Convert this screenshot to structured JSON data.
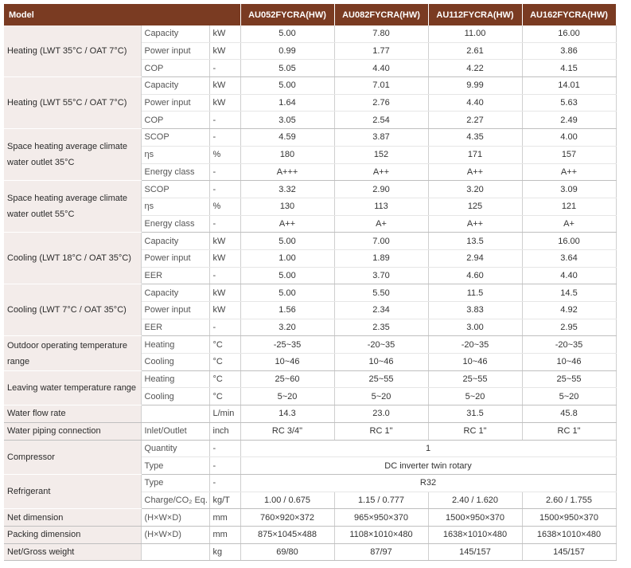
{
  "header": {
    "model_label": "Model",
    "models": [
      "AU052FYCRA(HW)",
      "AU082FYCRA(HW)",
      "AU112FYCRA(HW)",
      "AU162FYCRA(HW)"
    ]
  },
  "groups": [
    {
      "label": "Heating (LWT 35°C / OAT 7°C)",
      "rows": [
        {
          "item": "Capacity",
          "unit": "kW",
          "values": [
            "5.00",
            "7.80",
            "11.00",
            "16.00"
          ]
        },
        {
          "item": "Power input",
          "unit": "kW",
          "values": [
            "0.99",
            "1.77",
            "2.61",
            "3.86"
          ]
        },
        {
          "item": "COP",
          "unit": "-",
          "values": [
            "5.05",
            "4.40",
            "4.22",
            "4.15"
          ]
        }
      ]
    },
    {
      "label": "Heating (LWT 55°C / OAT 7°C)",
      "rows": [
        {
          "item": "Capacity",
          "unit": "kW",
          "values": [
            "5.00",
            "7.01",
            "9.99",
            "14.01"
          ]
        },
        {
          "item": "Power input",
          "unit": "kW",
          "values": [
            "1.64",
            "2.76",
            "4.40",
            "5.63"
          ]
        },
        {
          "item": "COP",
          "unit": "-",
          "values": [
            "3.05",
            "2.54",
            "2.27",
            "2.49"
          ]
        }
      ]
    },
    {
      "label": "Space heating average climate water outlet 35°C",
      "rows": [
        {
          "item": "SCOP",
          "unit": "-",
          "values": [
            "4.59",
            "3.87",
            "4.35",
            "4.00"
          ]
        },
        {
          "item": "ηs",
          "unit": "%",
          "values": [
            "180",
            "152",
            "171",
            "157"
          ]
        },
        {
          "item": "Energy class",
          "unit": "-",
          "values": [
            "A+++",
            "A++",
            "A++",
            "A++"
          ]
        }
      ]
    },
    {
      "label": "Space heating average climate water outlet 55°C",
      "rows": [
        {
          "item": "SCOP",
          "unit": "-",
          "values": [
            "3.32",
            "2.90",
            "3.20",
            "3.09"
          ]
        },
        {
          "item": "ηs",
          "unit": "%",
          "values": [
            "130",
            "113",
            "125",
            "121"
          ]
        },
        {
          "item": "Energy class",
          "unit": "-",
          "values": [
            "A++",
            "A+",
            "A++",
            "A+"
          ]
        }
      ]
    },
    {
      "label": "Cooling (LWT 18°C / OAT 35°C)",
      "rows": [
        {
          "item": "Capacity",
          "unit": "kW",
          "values": [
            "5.00",
            "7.00",
            "13.5",
            "16.00"
          ]
        },
        {
          "item": "Power input",
          "unit": "kW",
          "values": [
            "1.00",
            "1.89",
            "2.94",
            "3.64"
          ]
        },
        {
          "item": "EER",
          "unit": "-",
          "values": [
            "5.00",
            "3.70",
            "4.60",
            "4.40"
          ]
        }
      ]
    },
    {
      "label": "Cooling (LWT 7°C / OAT 35°C)",
      "rows": [
        {
          "item": "Capacity",
          "unit": "kW",
          "values": [
            "5.00",
            "5.50",
            "11.5",
            "14.5"
          ]
        },
        {
          "item": "Power input",
          "unit": "kW",
          "values": [
            "1.56",
            "2.34",
            "3.83",
            "4.92"
          ]
        },
        {
          "item": "EER",
          "unit": "-",
          "values": [
            "3.20",
            "2.35",
            "3.00",
            "2.95"
          ]
        }
      ]
    },
    {
      "label": "Outdoor operating temperature range",
      "rows": [
        {
          "item": "Heating",
          "unit": "°C",
          "values": [
            "-25~35",
            "-20~35",
            "-20~35",
            "-20~35"
          ]
        },
        {
          "item": "Cooling",
          "unit": "°C",
          "values": [
            "10~46",
            "10~46",
            "10~46",
            "10~46"
          ]
        }
      ]
    },
    {
      "label": "Leaving water temperature range",
      "rows": [
        {
          "item": "Heating",
          "unit": "°C",
          "values": [
            "25~60",
            "25~55",
            "25~55",
            "25~55"
          ]
        },
        {
          "item": "Cooling",
          "unit": "°C",
          "values": [
            "5~20",
            "5~20",
            "5~20",
            "5~20"
          ]
        }
      ]
    },
    {
      "label": "Water flow rate",
      "rows": [
        {
          "item": "",
          "unit": "L/min",
          "values": [
            "14.3",
            "23.0",
            "31.5",
            "45.8"
          ]
        }
      ]
    },
    {
      "label": "Water piping connection",
      "rows": [
        {
          "item": "Inlet/Outlet",
          "unit": "inch",
          "values": [
            "RC 3/4\"",
            "RC 1\"",
            "RC 1\"",
            "RC 1\""
          ]
        }
      ]
    },
    {
      "label": "Compressor",
      "rows": [
        {
          "item": "Quantity",
          "unit": "-",
          "span": "1"
        },
        {
          "item": "Type",
          "unit": "-",
          "span": "DC inverter twin rotary"
        }
      ]
    },
    {
      "label": "Refrigerant",
      "rows": [
        {
          "item": "Type",
          "unit": "-",
          "span": "R32"
        },
        {
          "item": "Charge/CO₂ Eq.",
          "unit": "kg/T",
          "values": [
            "1.00 / 0.675",
            "1.15 / 0.777",
            "2.40 / 1.620",
            "2.60 / 1.755"
          ]
        }
      ]
    },
    {
      "label": "Net dimension",
      "rows": [
        {
          "item": "(H×W×D)",
          "unit": "mm",
          "values": [
            "760×920×372",
            "965×950×370",
            "1500×950×370",
            "1500×950×370"
          ]
        }
      ]
    },
    {
      "label": "Packing dimension",
      "rows": [
        {
          "item": "(H×W×D)",
          "unit": "mm",
          "values": [
            "875×1045×488",
            "1108×1010×480",
            "1638×1010×480",
            "1638×1010×480"
          ]
        }
      ]
    },
    {
      "label": "Net/Gross weight",
      "rows": [
        {
          "item": "",
          "unit": "kg",
          "values": [
            "69/80",
            "87/97",
            "145/157",
            "145/157"
          ]
        }
      ]
    }
  ]
}
